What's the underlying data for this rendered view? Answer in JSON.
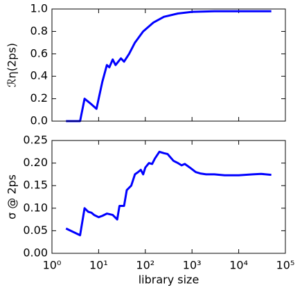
{
  "chart_data": [
    {
      "type": "line",
      "ylabel": "ℛη(2ps)",
      "x_scale": "log",
      "color": "#0000ff",
      "x": [
        2,
        4,
        5,
        7,
        9,
        12,
        15,
        17,
        20,
        23,
        30,
        35,
        45,
        60,
        90,
        150,
        250,
        500,
        1000,
        3000,
        10000,
        50000
      ],
      "values": [
        0,
        0,
        0.2,
        0.15,
        0.11,
        0.35,
        0.5,
        0.48,
        0.55,
        0.5,
        0.56,
        0.53,
        0.6,
        0.7,
        0.8,
        0.88,
        0.93,
        0.96,
        0.975,
        0.98,
        0.98,
        0.98
      ],
      "xlim": [
        1,
        100000
      ],
      "ylim": [
        0,
        1
      ],
      "yticks": [
        {
          "value": 0,
          "label": "0.0"
        },
        0.2,
        0.4,
        0.6,
        0.8,
        {
          "value": 1,
          "label": "1.0"
        }
      ]
    },
    {
      "type": "line",
      "ylabel": "σ @ 2ps",
      "xlabel": "library size",
      "x_scale": "log",
      "color": "#0000ff",
      "x": [
        2,
        4,
        5,
        6,
        7,
        8,
        10,
        12,
        15,
        20,
        25,
        28,
        35,
        40,
        50,
        60,
        70,
        80,
        90,
        100,
        120,
        140,
        160,
        200,
        250,
        300,
        400,
        500,
        600,
        700,
        900,
        1200,
        1500,
        2000,
        3000,
        5000,
        10000,
        20000,
        30000,
        50000
      ],
      "values": [
        0.055,
        0.04,
        0.1,
        0.092,
        0.09,
        0.085,
        0.08,
        0.083,
        0.088,
        0.085,
        0.075,
        0.105,
        0.105,
        0.14,
        0.15,
        0.175,
        0.18,
        0.185,
        0.175,
        0.19,
        0.2,
        0.198,
        0.21,
        0.225,
        0.222,
        0.22,
        0.205,
        0.2,
        0.195,
        0.198,
        0.19,
        0.18,
        0.177,
        0.175,
        0.175,
        0.173,
        0.173,
        0.175,
        0.176,
        0.174
      ],
      "xlim": [
        1,
        100000
      ],
      "ylim": [
        0,
        0.25
      ],
      "xticks": [
        {
          "value": 1,
          "label": "10⁰"
        },
        {
          "value": 10,
          "label": "10¹"
        },
        {
          "value": 100,
          "label": "10²"
        },
        {
          "value": 1000,
          "label": "10³"
        },
        {
          "value": 10000,
          "label": "10⁴"
        },
        {
          "value": 100000,
          "label": "10⁵"
        }
      ],
      "yticks": [
        {
          "value": 0,
          "label": "0.00"
        },
        0.05,
        {
          "value": 0.1,
          "label": "0.10"
        },
        0.15,
        {
          "value": 0.2,
          "label": "0.20"
        },
        0.25
      ]
    }
  ]
}
